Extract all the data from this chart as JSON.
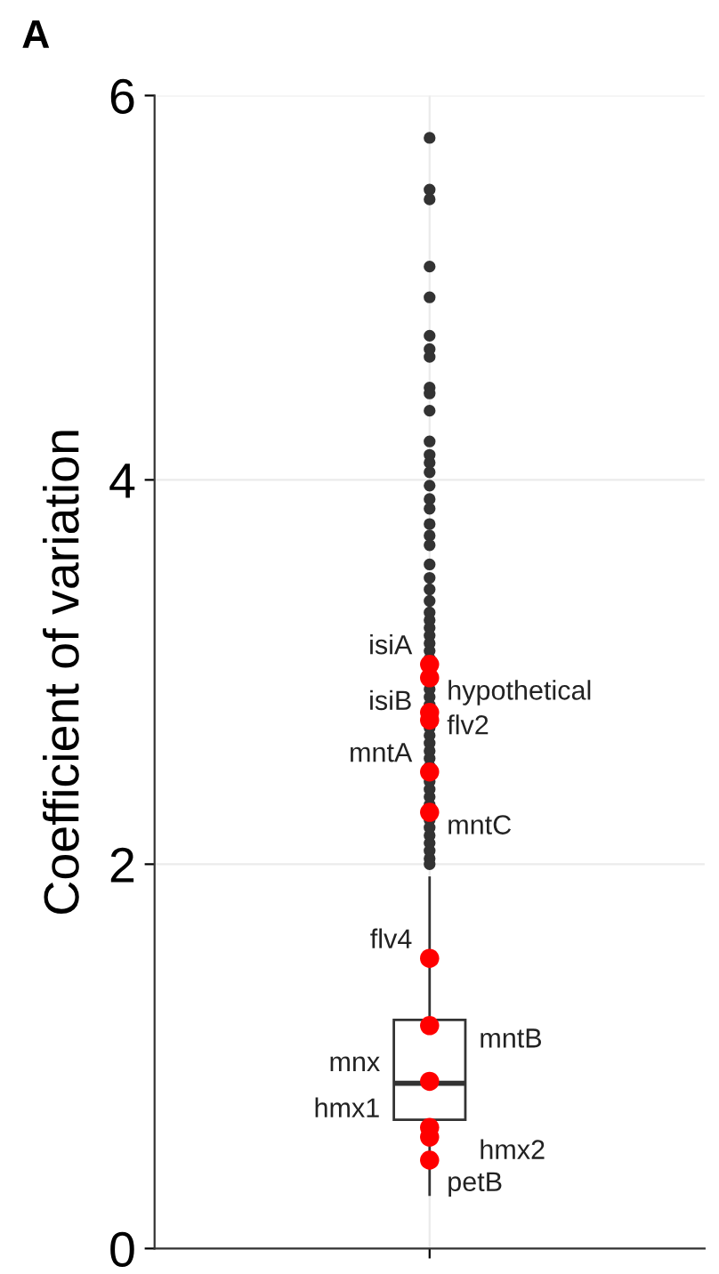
{
  "chart_data": {
    "type": "box",
    "title": "A",
    "ylabel": "Coefficient of variation",
    "categories": [
      null
    ],
    "ylim": [
      0,
      6
    ],
    "yticks": [
      0,
      2,
      4,
      6
    ],
    "grid": true,
    "boxes": [
      {
        "low": 0.28,
        "q1": 0.67,
        "median": 0.86,
        "q3": 1.19,
        "high": 1.93,
        "outliers": [
          5.78,
          5.51,
          5.46,
          5.11,
          4.95,
          4.75,
          4.68,
          4.64,
          4.48,
          4.45,
          4.36,
          4.2,
          4.13,
          4.09,
          4.04,
          3.97,
          3.9,
          3.85,
          3.77,
          3.71,
          3.66,
          3.56,
          3.49,
          3.43,
          3.37,
          3.31,
          3.27,
          3.23,
          3.19,
          3.15,
          3.11,
          3.07,
          2.91,
          2.87,
          2.83,
          2.71,
          2.67,
          2.63,
          2.59,
          2.55,
          2.51,
          2.43,
          2.39,
          2.35,
          2.31,
          2.23,
          2.19,
          2.15,
          2.11,
          2.07,
          2.03,
          2.0
        ]
      }
    ],
    "series": [
      {
        "type": "scatter",
        "color": "#ff0000",
        "x": [
          null,
          null,
          null,
          null,
          null,
          null,
          null,
          null,
          null,
          null,
          null,
          null
        ],
        "values": [
          3.04,
          2.97,
          2.75,
          2.79,
          2.48,
          2.27,
          1.51,
          1.16,
          0.87,
          0.58,
          0.63,
          0.46
        ],
        "value_labels": [
          "isiA",
          "hypothetical",
          "isiB",
          "flv2",
          "mntA",
          "mntC",
          "flv4",
          "mntB",
          "mnx",
          "hmx2",
          "hmx1",
          "petB"
        ]
      }
    ]
  }
}
